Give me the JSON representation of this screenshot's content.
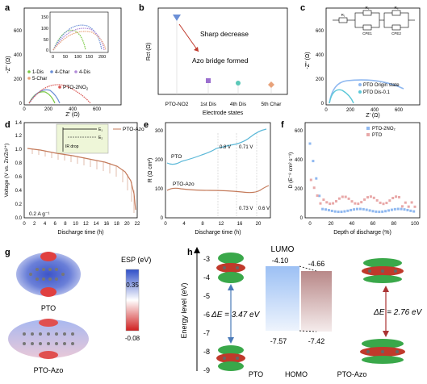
{
  "panels": {
    "a": {
      "letter": "a",
      "ylabel": "-Z'' (Ω)",
      "xlabel": "Z' (Ω)",
      "xticks": [
        "0",
        "200",
        "400",
        "600"
      ],
      "yticks": [
        "0",
        "200",
        "400",
        "600"
      ],
      "inset_xticks": [
        "0",
        "50",
        "100",
        "150",
        "200"
      ],
      "inset_yticks": [
        "0",
        "50",
        "100",
        "150"
      ],
      "legend": [
        "1-Dis",
        "4-Char",
        "4-Dis",
        "5-Char"
      ],
      "annotation": "PTO-2NO",
      "annotation_sub": "2"
    },
    "b": {
      "letter": "b",
      "ylabel": "Rct (Ω)",
      "xlabel": "Electrode states",
      "categories": [
        "PTO-NO2",
        "1st Dis",
        "4th Dis",
        "5th Char"
      ],
      "text1": "Sharp decrease",
      "text2": "Azo bridge formed"
    },
    "c": {
      "letter": "c",
      "ylabel": "-Z'' (Ω)",
      "xlabel": "Z' (Ω)",
      "xticks": [
        "0",
        "200",
        "400",
        "600"
      ],
      "yticks": [
        "0",
        "200",
        "400",
        "600"
      ],
      "circuit": [
        "R₁",
        "R₂",
        "R₃",
        "CPE1",
        "CPE2"
      ],
      "legend": [
        "PTO Origin state",
        "PTO Dis-0.1"
      ]
    },
    "d": {
      "letter": "d",
      "ylabel": "Voltage (V vs. Zn/Zn²⁺)",
      "xlabel": "Discharge time (h)",
      "xticks": [
        "0",
        "2",
        "4",
        "6",
        "8",
        "10",
        "12",
        "14",
        "16",
        "18",
        "20",
        "22"
      ],
      "yticks": [
        "0.0",
        "0.2",
        "0.4",
        "0.6",
        "0.8",
        "1.0",
        "1.2",
        "1.4"
      ],
      "legend": "PTO-Azo",
      "inset_label": "IR drop",
      "inset_e1": "E₁",
      "inset_e2": "E₂",
      "rate": "0.2 A g⁻¹"
    },
    "e": {
      "letter": "e",
      "ylabel": "R (Ω cm²)",
      "xlabel": "Discharge time (h)",
      "xticks": [
        "0",
        "4",
        "8",
        "12",
        "16",
        "20"
      ],
      "yticks": [
        "0",
        "100",
        "200",
        "300"
      ],
      "label_pto": "PTO",
      "label_azo": "PTO-Azo",
      "v_marks": [
        "0.8 V",
        "0.71 V",
        "0.73 V",
        "0.6 V"
      ]
    },
    "f": {
      "letter": "f",
      "ylabel": "D (E⁻⁸ cm² s⁻¹)",
      "xlabel": "Depth of discharge (%)",
      "xticks": [
        "0",
        "20",
        "40",
        "60",
        "80",
        "100"
      ],
      "yticks": [
        "0",
        "200",
        "400",
        "600"
      ],
      "legend": [
        "PTO-2NO₂",
        "PTO"
      ]
    },
    "g": {
      "letter": "g",
      "title": "ESP (eV)",
      "scale_max": "0.35",
      "scale_min": "-0.08",
      "label1": "PTO",
      "label2": "PTO-Azo"
    },
    "h": {
      "letter": "h",
      "ylabel": "Energy level (eV)",
      "yticks": [
        "-3",
        "-4",
        "-5",
        "-6",
        "-7",
        "-8",
        "-9"
      ],
      "lumo": "LUMO",
      "homo": "HOMO",
      "pto_lumo": "-4.10",
      "pto_homo": "-7.57",
      "azo_lumo": "-4.66",
      "azo_homo": "-7.42",
      "gap_pto": "ΔE = 3.47 eV",
      "gap_azo": "ΔE = 2.76 eV",
      "label_pto": "PTO",
      "label_azo": "PTO-Azo"
    }
  },
  "colors": {
    "green": "#7ac943",
    "blue": "#6b8fd6",
    "purple": "#b18ad8",
    "salmon": "#e8a27a",
    "red": "#d9534f",
    "sky": "#8fb8f0",
    "rose": "#c08c8c",
    "cyan": "#5bc8d8",
    "mauve": "#c9a0d8"
  }
}
